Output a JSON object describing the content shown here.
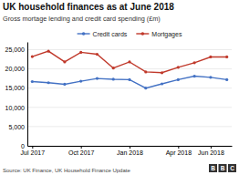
{
  "chart_data": {
    "type": "line",
    "title": "UK household finances as at June 2018",
    "subtitle": "Gross mortage lending and credit card spending (£m)",
    "source": "Source: UK Finance, UK Household Finance Update",
    "annotations": [
      "B",
      "B",
      "C"
    ],
    "categories": [
      "Jul 2017",
      null,
      null,
      "Oct 2017",
      null,
      null,
      "Jan 2018",
      null,
      null,
      "Apr 2018",
      null,
      "Jun 2018",
      null
    ],
    "series": [
      {
        "name": "Credit cards",
        "color": "#4472c4",
        "marker": "circle",
        "values": [
          16700,
          16400,
          16000,
          16800,
          17500,
          17300,
          17200,
          15000,
          16100,
          17200,
          18100,
          17800,
          17200
        ]
      },
      {
        "name": "Mortgages",
        "color": "#c0392b",
        "marker": "circle",
        "values": [
          23200,
          24600,
          21800,
          24300,
          23800,
          20200,
          21800,
          19200,
          19000,
          20400,
          21600,
          23100,
          23100
        ]
      }
    ],
    "ylim": [
      0,
      27000
    ],
    "yticks": [
      0,
      {
        "value": 5000,
        "label": "5,000"
      },
      {
        "value": 10000,
        "label": "10,000"
      },
      {
        "value": 15000,
        "label": "15,000"
      },
      {
        "value": 20000,
        "label": "20,000"
      },
      {
        "value": 25000,
        "label": "25,000"
      }
    ],
    "grid": true,
    "legend": "top"
  }
}
